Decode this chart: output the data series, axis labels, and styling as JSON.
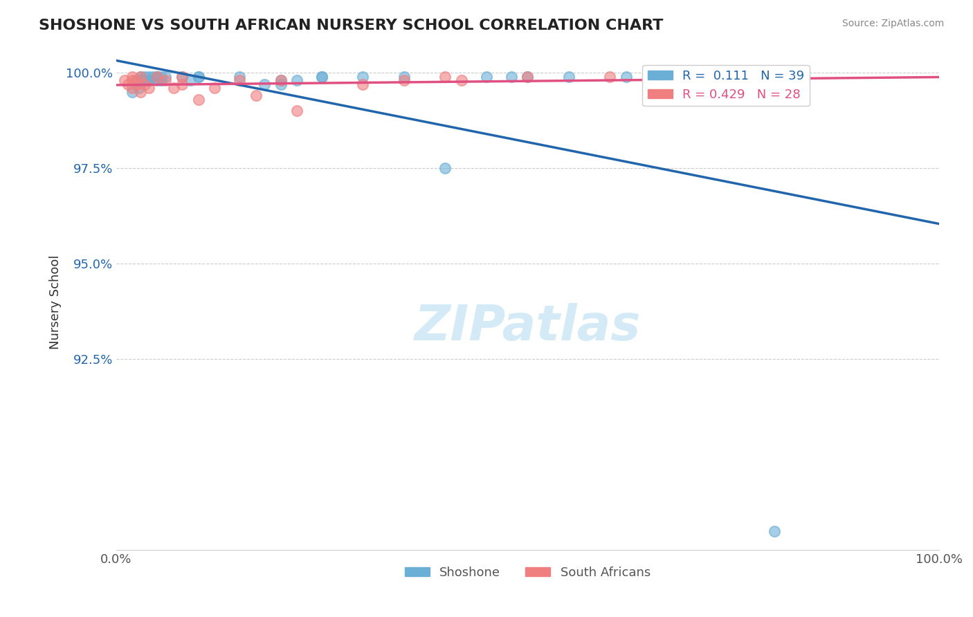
{
  "title": "SHOSHONE VS SOUTH AFRICAN NURSERY SCHOOL CORRELATION CHART",
  "source_text": "Source: ZipAtlas.com",
  "xlabel": "",
  "ylabel": "Nursery School",
  "legend_shoshone": "Shoshone",
  "legend_sa": "South Africans",
  "R_shoshone": 0.111,
  "N_shoshone": 39,
  "R_sa": 0.429,
  "N_sa": 28,
  "xlim": [
    0.0,
    1.0
  ],
  "ylim": [
    0.875,
    1.005
  ],
  "yticks": [
    1.0,
    0.975,
    0.95,
    0.925
  ],
  "ytick_labels": [
    "100.0%",
    "97.5%",
    "95.0%",
    "92.5%"
  ],
  "xtick_labels": [
    "0.0%",
    "100.0%"
  ],
  "color_shoshone": "#6baed6",
  "color_sa": "#f08080",
  "color_trend_shoshone": "#2166ac",
  "color_trend_sa": "#e05080",
  "watermark_color": "#d0e8f5",
  "shoshone_x": [
    0.02,
    0.025,
    0.028,
    0.03,
    0.03,
    0.03,
    0.035,
    0.035,
    0.04,
    0.04,
    0.04,
    0.045,
    0.05,
    0.05,
    0.05,
    0.055,
    0.055,
    0.06,
    0.08,
    0.09,
    0.1,
    0.1,
    0.15,
    0.18,
    0.2,
    0.2,
    0.22,
    0.25,
    0.25,
    0.3,
    0.35,
    0.4,
    0.45,
    0.48,
    0.5,
    0.55,
    0.62,
    0.7,
    0.8
  ],
  "shoshone_y": [
    0.995,
    0.998,
    0.996,
    0.998,
    0.999,
    0.998,
    0.998,
    0.999,
    0.998,
    0.999,
    0.998,
    0.999,
    0.999,
    0.998,
    0.999,
    0.998,
    0.999,
    0.999,
    0.999,
    0.998,
    0.999,
    0.999,
    0.999,
    0.997,
    0.998,
    0.997,
    0.998,
    0.999,
    0.999,
    0.999,
    0.999,
    0.975,
    0.999,
    0.999,
    0.999,
    0.999,
    0.999,
    0.999,
    0.88
  ],
  "sa_x": [
    0.01,
    0.015,
    0.02,
    0.02,
    0.02,
    0.025,
    0.025,
    0.03,
    0.03,
    0.035,
    0.04,
    0.05,
    0.06,
    0.07,
    0.08,
    0.08,
    0.1,
    0.12,
    0.15,
    0.17,
    0.2,
    0.22,
    0.3,
    0.35,
    0.4,
    0.42,
    0.5,
    0.6
  ],
  "sa_y": [
    0.998,
    0.997,
    0.999,
    0.998,
    0.996,
    0.998,
    0.997,
    0.999,
    0.995,
    0.997,
    0.996,
    0.999,
    0.998,
    0.996,
    0.999,
    0.997,
    0.993,
    0.996,
    0.998,
    0.994,
    0.998,
    0.99,
    0.997,
    0.998,
    0.999,
    0.998,
    0.999,
    0.999
  ]
}
